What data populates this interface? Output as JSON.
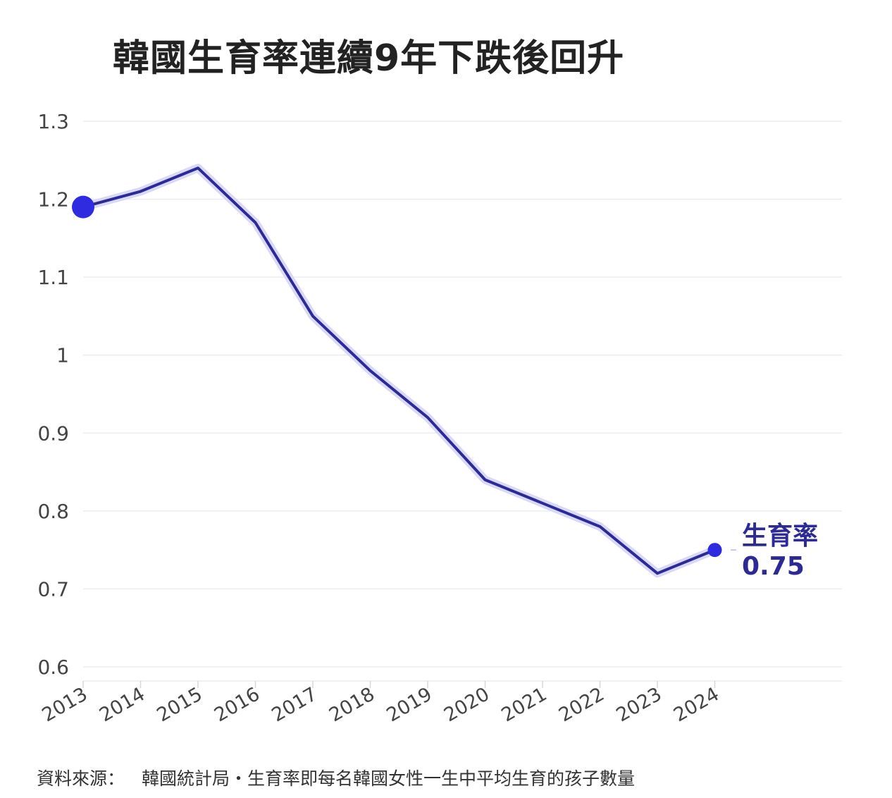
{
  "title": "韓國生育率連續9年下跌後回升",
  "source": {
    "label": "資料來源：",
    "text": "韓國統計局・生育率即每名韓國女性一生中平均生育的孩子數量"
  },
  "colors": {
    "line": "#2b2a96",
    "marker": "#2f2be0",
    "glow": "#d9d8f7",
    "grid": "#ececf2",
    "label": "#2b2a96"
  },
  "chart_data": {
    "type": "line",
    "title": "韓國生育率連續9年下跌後回升",
    "xlabel": "",
    "ylabel": "",
    "x": [
      "2013",
      "2014",
      "2015",
      "2016",
      "2017",
      "2018",
      "2019",
      "2020",
      "2021",
      "2022",
      "2023",
      "2024"
    ],
    "series": [
      {
        "name": "生育率",
        "values": [
          1.19,
          1.21,
          1.24,
          1.17,
          1.05,
          0.98,
          0.92,
          0.84,
          0.81,
          0.78,
          0.72,
          0.75
        ]
      }
    ],
    "ylim": [
      0.6,
      1.3
    ],
    "yticks": [
      "1.3",
      "1.2",
      "1.1",
      "1",
      "0.9",
      "0.8",
      "0.7",
      "0.6"
    ],
    "grid": true,
    "end_label": {
      "name": "生育率",
      "value": "0.75"
    }
  }
}
